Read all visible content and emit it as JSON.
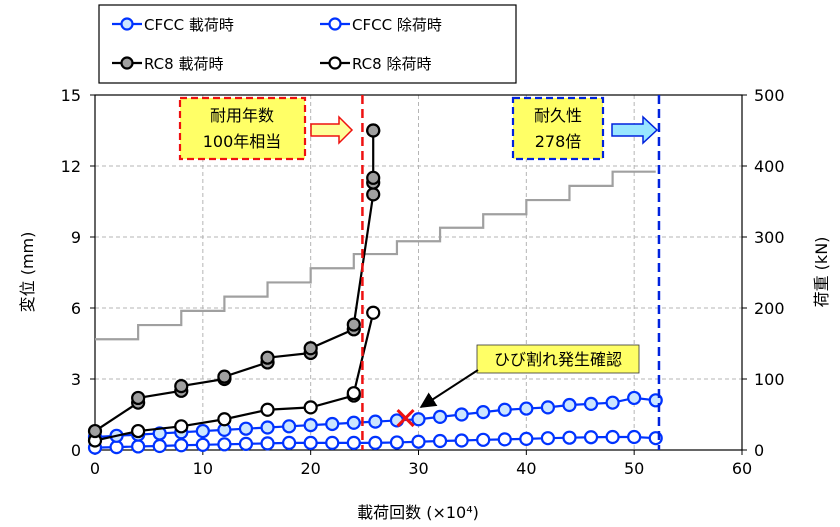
{
  "chart_data": {
    "type": "line",
    "xlabel": "載荷回数 (×10⁴)",
    "ylabel": "変位 (mm)",
    "y2label": "荷重 (kN)",
    "xlim": [
      0,
      60
    ],
    "ylim": [
      0,
      15
    ],
    "y2lim": [
      0,
      500
    ],
    "x_ticks": [
      "0",
      "10",
      "20",
      "30",
      "40",
      "50",
      "60"
    ],
    "y_ticks": [
      "0",
      "3",
      "6",
      "9",
      "12",
      "15"
    ],
    "y2_ticks": [
      "0",
      "100",
      "200",
      "300",
      "400",
      "500"
    ],
    "grid": true,
    "legend_position": "top-left, outside plot",
    "colors": {
      "cfcc": "#0033ff",
      "rc8": "#000000",
      "rc8_load_fill": "#a0a0a0",
      "load": "#a0a0a0",
      "red_line": "#ee1111",
      "blue_line": "#0022dd",
      "callout_fill": "#ffff66"
    },
    "series": [
      {
        "name": "CFCC 載荷時",
        "axis": "left",
        "x": [
          0,
          2,
          4,
          6,
          8,
          10,
          12,
          14,
          16,
          18,
          20,
          22,
          24,
          26,
          28,
          30,
          32,
          34,
          36,
          38,
          40,
          42,
          44,
          46,
          48,
          50,
          52
        ],
        "y": [
          0.55,
          0.6,
          0.65,
          0.7,
          0.75,
          0.8,
          0.85,
          0.9,
          0.95,
          1.0,
          1.05,
          1.1,
          1.15,
          1.2,
          1.25,
          1.3,
          1.4,
          1.5,
          1.6,
          1.7,
          1.75,
          1.8,
          1.9,
          1.95,
          2.0,
          2.2,
          2.1
        ]
      },
      {
        "name": "CFCC 除荷時",
        "axis": "left",
        "x": [
          0,
          2,
          4,
          6,
          8,
          10,
          12,
          14,
          16,
          18,
          20,
          22,
          24,
          26,
          28,
          30,
          32,
          34,
          36,
          38,
          40,
          42,
          44,
          46,
          48,
          50,
          52
        ],
        "y": [
          0.1,
          0.12,
          0.15,
          0.17,
          0.2,
          0.22,
          0.24,
          0.26,
          0.28,
          0.3,
          0.3,
          0.3,
          0.3,
          0.3,
          0.32,
          0.35,
          0.38,
          0.4,
          0.43,
          0.45,
          0.47,
          0.5,
          0.52,
          0.54,
          0.55,
          0.55,
          0.5
        ]
      },
      {
        "name": "RC8 載荷時",
        "axis": "left",
        "x": [
          0,
          4,
          4,
          8,
          8,
          12,
          12,
          16,
          16,
          20,
          20,
          24,
          24,
          25.8,
          25.8,
          25.8,
          25.8,
          25.8
        ],
        "y": [
          0.8,
          2.0,
          2.2,
          2.5,
          2.7,
          3.0,
          3.1,
          3.7,
          3.9,
          4.1,
          4.3,
          5.1,
          5.3,
          10.8,
          11.3,
          11.5,
          13.5,
          13.5
        ]
      },
      {
        "name": "RC8 除荷時",
        "axis": "left",
        "x": [
          0,
          4,
          8,
          12,
          16,
          20,
          24,
          24,
          25.8
        ],
        "y": [
          0.4,
          0.8,
          1.0,
          1.3,
          1.7,
          1.8,
          2.3,
          2.4,
          5.8
        ]
      },
      {
        "axis": "right",
        "step_x": [
          0,
          4,
          4,
          8,
          8,
          12,
          12,
          16,
          16,
          20,
          20,
          24,
          24,
          28,
          28,
          32,
          32,
          36,
          36,
          40,
          40,
          44,
          44,
          48,
          48,
          52
        ],
        "step_y": [
          156,
          156,
          176,
          176,
          196,
          196,
          216,
          216,
          236,
          236,
          256,
          256,
          276,
          276,
          294,
          294,
          313,
          313,
          332,
          332,
          352,
          352,
          372,
          372,
          392,
          392
        ]
      }
    ],
    "vlines": [
      {
        "x": 24.8,
        "color": "red"
      },
      {
        "x": 52.3,
        "color": "blue"
      }
    ],
    "annotations": {
      "service_life": {
        "line1": "耐用年数",
        "line2": "100年相当",
        "x": 24.8
      },
      "durability": {
        "line1": "耐久性",
        "line2": "278倍",
        "x": 52.3
      },
      "crack": {
        "text": "ひび割れ発生確認",
        "x": 28.8,
        "y": 1.35
      }
    }
  }
}
